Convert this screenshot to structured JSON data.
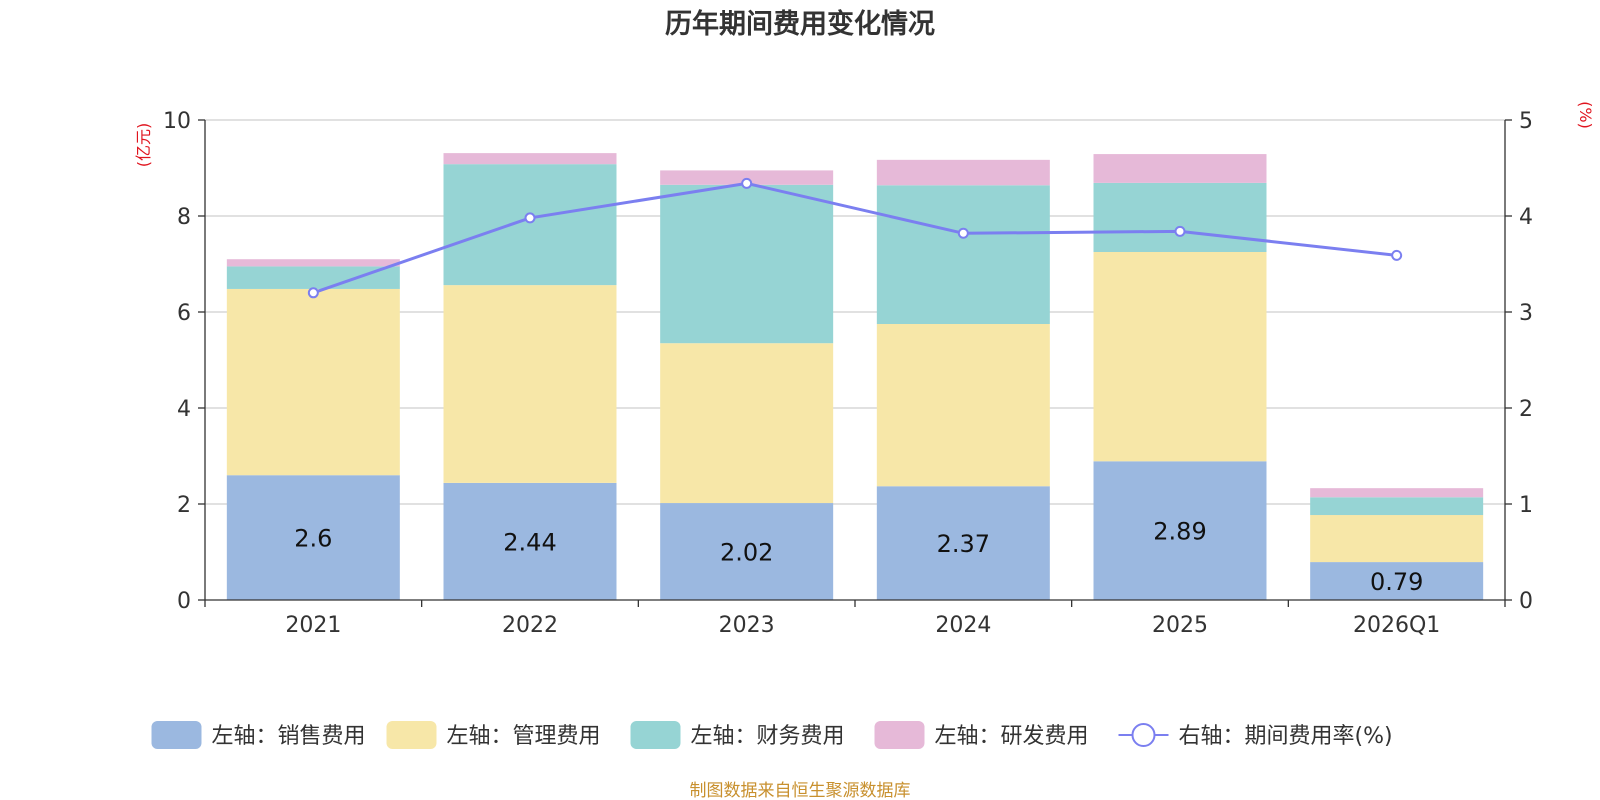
{
  "chart_data": {
    "type": "bar",
    "title": "历年期间费用变化情况",
    "categories": [
      "2021",
      "2022",
      "2023",
      "2024",
      "2025",
      "2026Q1"
    ],
    "left_axis": {
      "unit": "(亿元)",
      "ylim": [
        0,
        10
      ],
      "ticks": [
        "0",
        "2",
        "4",
        "6",
        "8",
        "10"
      ]
    },
    "right_axis": {
      "unit": "(%)",
      "ylim": [
        0,
        5
      ],
      "ticks": [
        "0",
        "1",
        "2",
        "3",
        "4",
        "5"
      ]
    },
    "series": [
      {
        "name": "左轴：销售费用",
        "type": "bar",
        "stack": "left",
        "color": "#9bb8e0",
        "values": [
          2.6,
          2.44,
          2.02,
          2.37,
          2.89,
          0.79
        ],
        "labels": [
          "2.6",
          "2.44",
          "2.02",
          "2.37",
          "2.89",
          "0.79"
        ]
      },
      {
        "name": "左轴：管理费用",
        "type": "bar",
        "stack": "left",
        "color": "#f7e7a8",
        "values": [
          3.88,
          4.12,
          3.33,
          3.38,
          4.36,
          0.98
        ]
      },
      {
        "name": "左轴：财务费用",
        "type": "bar",
        "stack": "left",
        "color": "#96d4d4",
        "values": [
          0.47,
          2.52,
          3.3,
          2.89,
          1.44,
          0.37
        ]
      },
      {
        "name": "左轴：研发费用",
        "type": "bar",
        "stack": "left",
        "color": "#e6b9d8",
        "values": [
          0.15,
          0.23,
          0.3,
          0.53,
          0.6,
          0.19
        ]
      },
      {
        "name": "右轴：期间费用率(%)",
        "type": "line",
        "axis": "right",
        "color": "#7b7ff0",
        "values": [
          3.2,
          3.98,
          4.34,
          3.82,
          3.84,
          3.59
        ]
      }
    ],
    "grid": true,
    "legend_position": "bottom"
  },
  "source_note": "制图数据来自恒生聚源数据库"
}
